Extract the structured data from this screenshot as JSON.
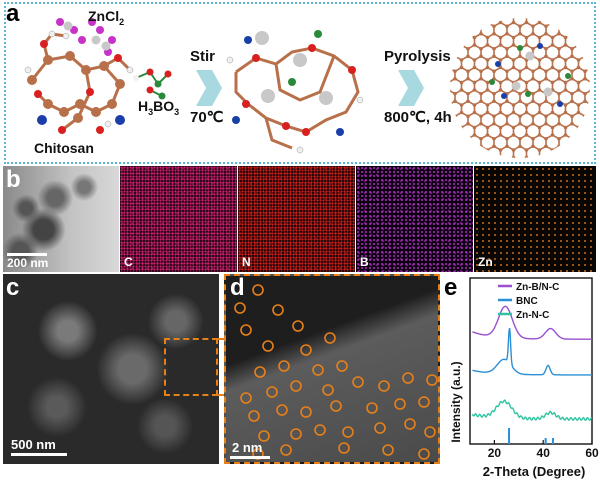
{
  "panel_a": {
    "letter": "a",
    "reagents": {
      "zncl2": "ZnCl",
      "zncl2_sub": "2",
      "h3bo3_pre": "H",
      "h3bo3_sub1": "3",
      "h3bo3_mid": "BO",
      "h3bo3_sub2": "3"
    },
    "chitosan_label": "Chitosan",
    "step1": {
      "label": "Stir",
      "condition": "70℃"
    },
    "step2": {
      "label": "Pyrolysis",
      "condition": "800℃, 4h"
    },
    "colors": {
      "border": "#5bb8d4",
      "arrow": "#a8d8e0",
      "carbon": "#b8704a",
      "nitrogen": "#1a3fa8",
      "boron": "#2a8a3a",
      "zinc": "#c8c8c8",
      "chlorine": "#c832c8",
      "oxygen": "#d82020"
    }
  },
  "panel_b": {
    "letter": "b",
    "scale_label": "200 nm",
    "maps": [
      {
        "element": "C",
        "color": "#d02070"
      },
      {
        "element": "N",
        "color": "#d02020"
      },
      {
        "element": "B",
        "color": "#b030c0"
      },
      {
        "element": "Zn",
        "color": "#d07018"
      }
    ]
  },
  "panel_c": {
    "letter": "c",
    "scale_label": "500 nm"
  },
  "panel_d": {
    "letter": "d",
    "scale_label": "2 nm",
    "marker_color": "#e8801a"
  },
  "panel_e": {
    "letter": "e",
    "chart_data": {
      "type": "line",
      "xlabel": "2-Theta (Degree)",
      "ylabel": "Intensity (a.u.)",
      "xlim": [
        10,
        60
      ],
      "xticks": [
        20,
        40,
        60
      ],
      "legend": "top-right",
      "series": [
        {
          "name": "Zn-B/N-C",
          "color": "#9a4fd0"
        },
        {
          "name": "BNC",
          "color": "#2a8fd6"
        },
        {
          "name": "Zn-N-C",
          "color": "#2ec4a0"
        }
      ],
      "reference_markers": [
        26,
        41,
        44
      ]
    }
  }
}
